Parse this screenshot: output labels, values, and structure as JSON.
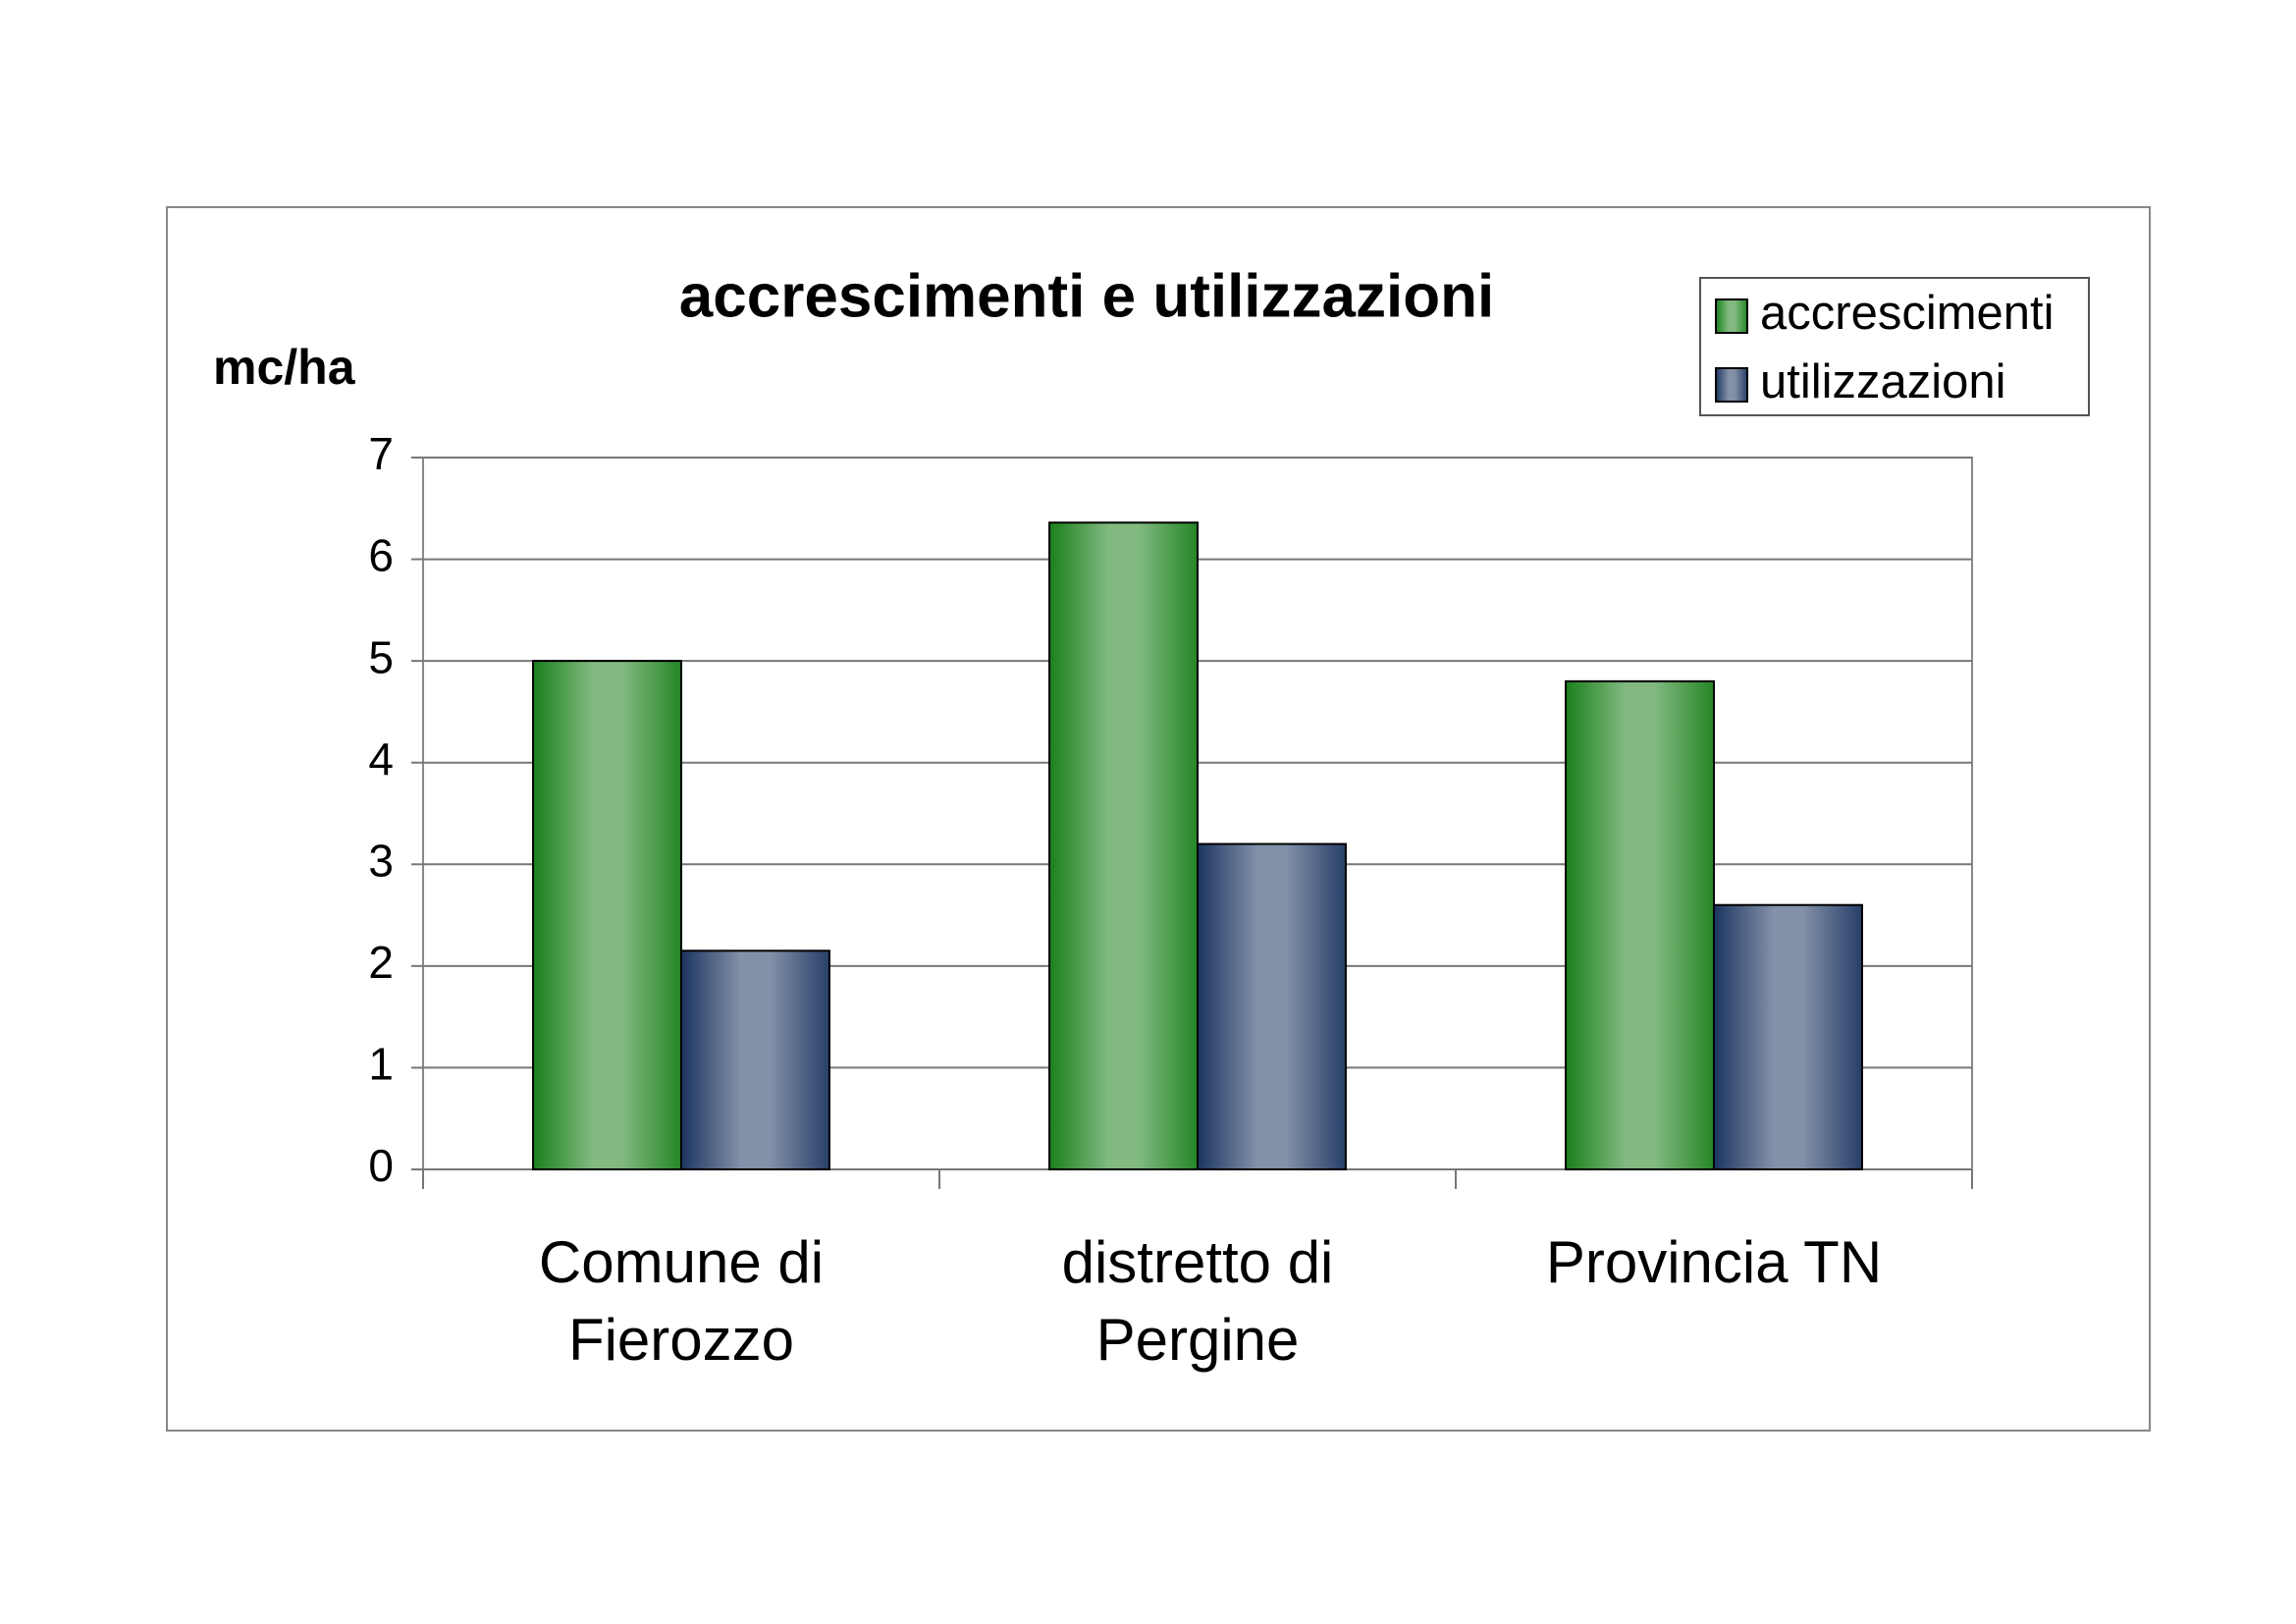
{
  "chart_data": {
    "type": "bar",
    "title": "accrescimenti e utilizzazioni",
    "y_label": "mc/ha",
    "categories": [
      "Comune di Fierozzo",
      "distretto di Pergine",
      "Provincia TN"
    ],
    "series": [
      {
        "name": "accrescimenti",
        "color": "#1a801a",
        "values": [
          5.0,
          6.36,
          4.8
        ]
      },
      {
        "name": "utilizzazioni",
        "color": "#1c3560",
        "values": [
          2.15,
          3.2,
          2.6
        ]
      }
    ],
    "ylim": [
      0,
      7
    ],
    "yticks": [
      0,
      1,
      2,
      3,
      4,
      5,
      6,
      7
    ],
    "grid": true,
    "legend": "top-right"
  }
}
